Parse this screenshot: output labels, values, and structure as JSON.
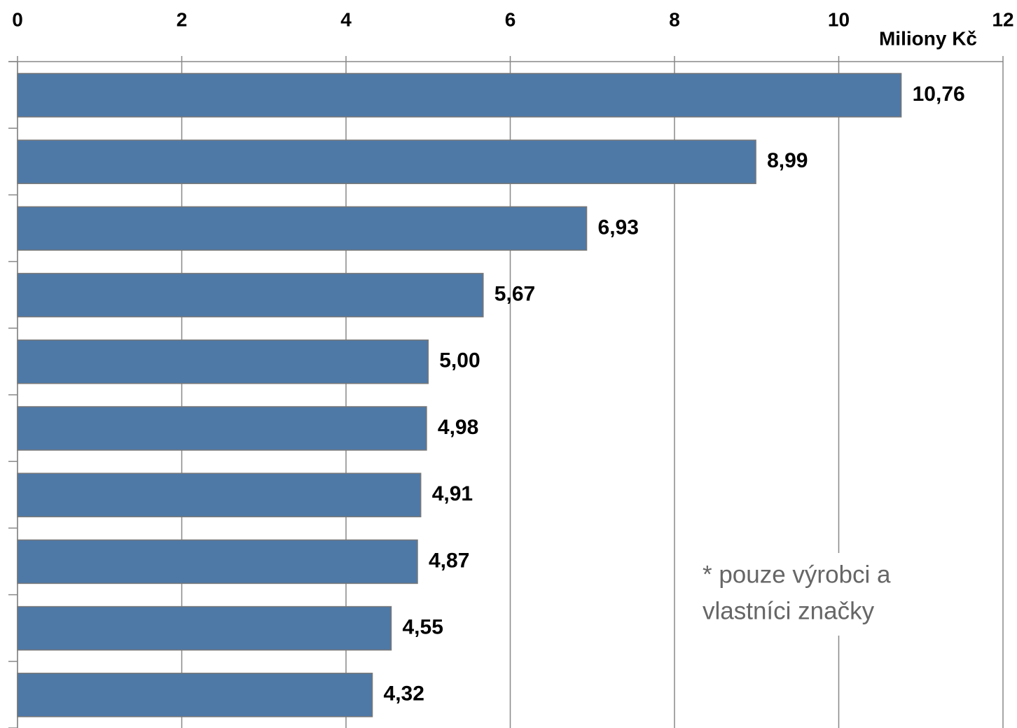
{
  "chart_data": {
    "type": "bar",
    "orientation": "horizontal",
    "x_axis_label": "Miliony Kč",
    "annotation": [
      "* pouze výrobci a",
      "vlastníci značky"
    ],
    "categories": [
      null,
      null,
      null,
      null,
      null,
      null,
      null,
      null,
      null,
      null
    ],
    "values": [
      10.76,
      8.99,
      6.93,
      5.67,
      5.0,
      4.98,
      4.91,
      4.87,
      4.55,
      4.32
    ],
    "value_labels": [
      "10,76",
      "8,99",
      "6,93",
      "5,67",
      "5,00",
      "4,98",
      "4,91",
      "4,87",
      "4,55",
      "4,32"
    ],
    "color": "#4e79a7",
    "xlim": [
      0,
      12
    ],
    "xticks": [
      0,
      2,
      4,
      6,
      8,
      10,
      12
    ],
    "grid": true
  }
}
